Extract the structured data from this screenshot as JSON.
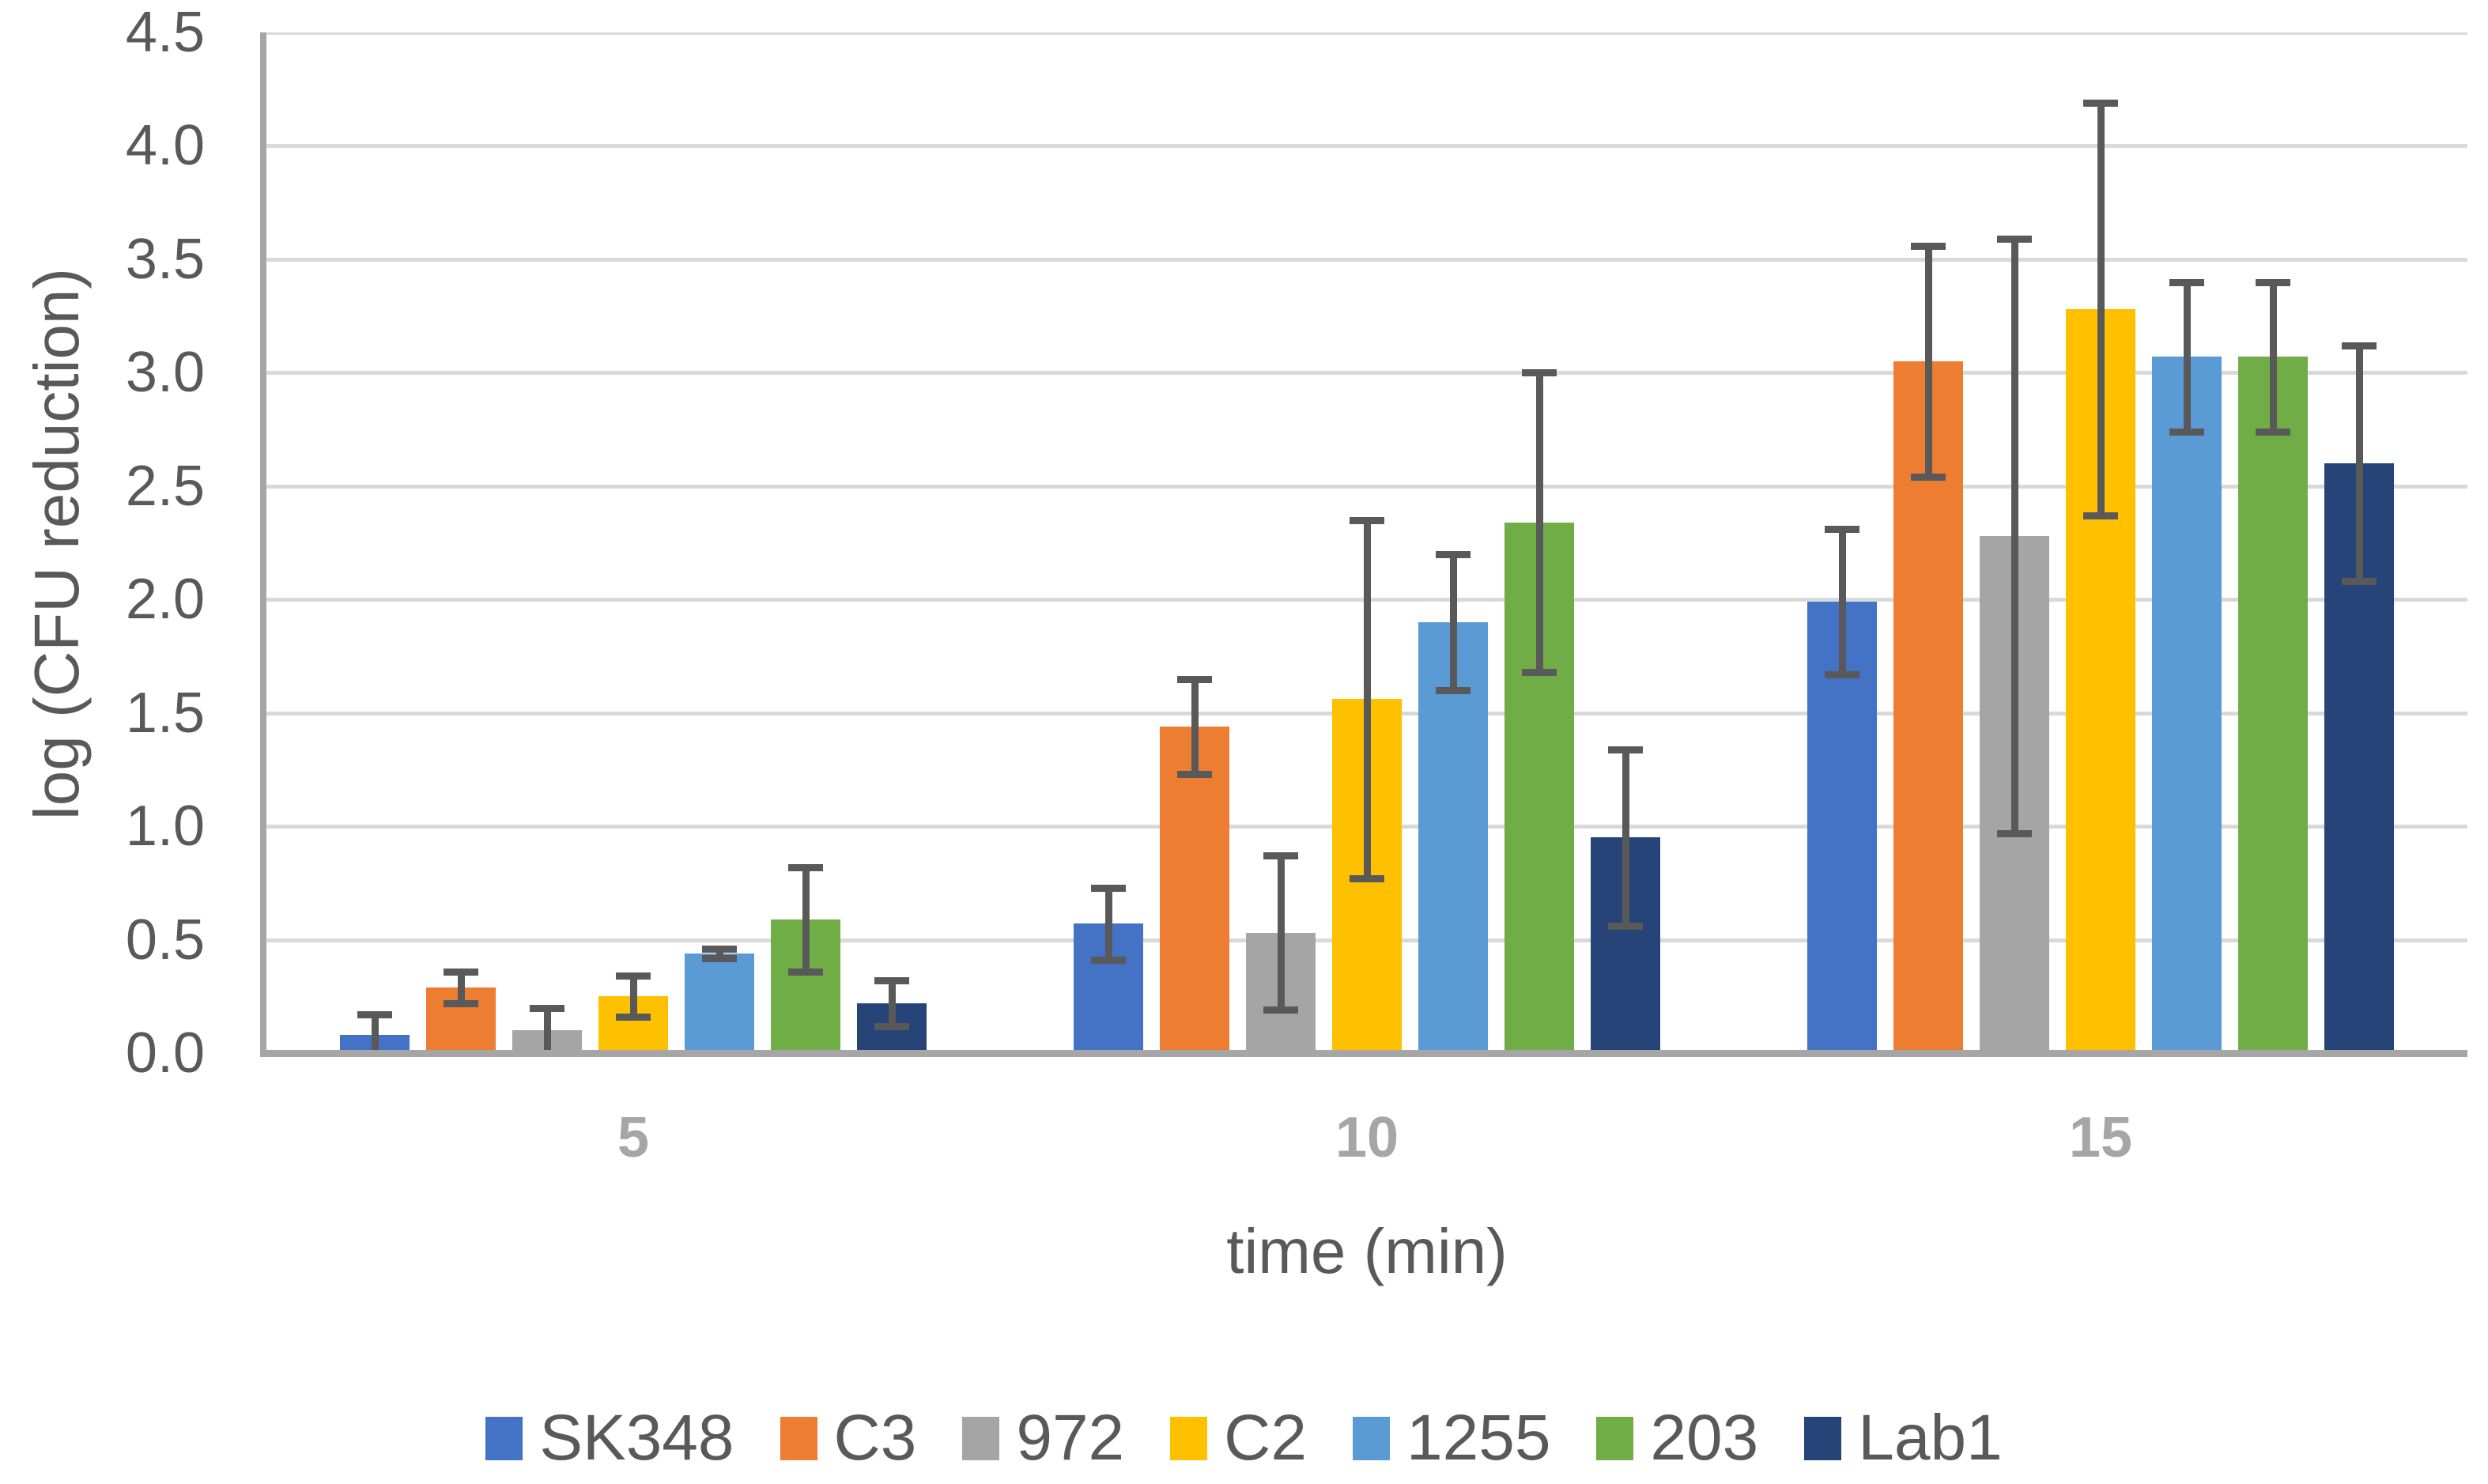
{
  "chart_data": {
    "type": "bar",
    "title": "",
    "xlabel": "time (min)",
    "ylabel": "log (CFU reduction)",
    "categories": [
      "5",
      "10",
      "15"
    ],
    "series": [
      {
        "name": "SK348",
        "color": "#4472C4",
        "values": [
          0.08,
          0.57,
          1.99
        ],
        "errors": [
          0.09,
          0.16,
          0.32
        ]
      },
      {
        "name": "C3",
        "color": "#ED7D31",
        "values": [
          0.29,
          1.44,
          3.05
        ],
        "errors": [
          0.07,
          0.21,
          0.51
        ]
      },
      {
        "name": "972",
        "color": "#A5A5A5",
        "values": [
          0.1,
          0.53,
          2.28
        ],
        "errors": [
          0.1,
          0.34,
          1.31
        ]
      },
      {
        "name": "C2",
        "color": "#FFC000",
        "values": [
          0.25,
          1.56,
          3.28
        ],
        "errors": [
          0.09,
          0.79,
          0.91
        ]
      },
      {
        "name": "1255",
        "color": "#5B9BD5",
        "values": [
          0.44,
          1.9,
          3.07
        ],
        "errors": [
          0.02,
          0.3,
          0.33
        ]
      },
      {
        "name": "203",
        "color": "#70AD47",
        "values": [
          0.59,
          2.34,
          3.07
        ],
        "errors": [
          0.23,
          0.66,
          0.33
        ]
      },
      {
        "name": "Lab1",
        "color": "#264478",
        "values": [
          0.22,
          0.95,
          2.6
        ],
        "errors": [
          0.1,
          0.39,
          0.52
        ]
      }
    ],
    "ylim": [
      0,
      4.5
    ],
    "ytick_step": 0.5,
    "ytick_decimals": 1,
    "grid": true,
    "legend_position": "bottom",
    "colors": {
      "gridline": "#D9D9D9",
      "axis_line": "#A6A6A6",
      "error_bar": "#595959",
      "y_tick_label": "#595959",
      "x_tick_label": "#A6A6A6",
      "axis_title": "#595959",
      "legend_text": "#595959",
      "background": "#FFFFFF"
    }
  }
}
